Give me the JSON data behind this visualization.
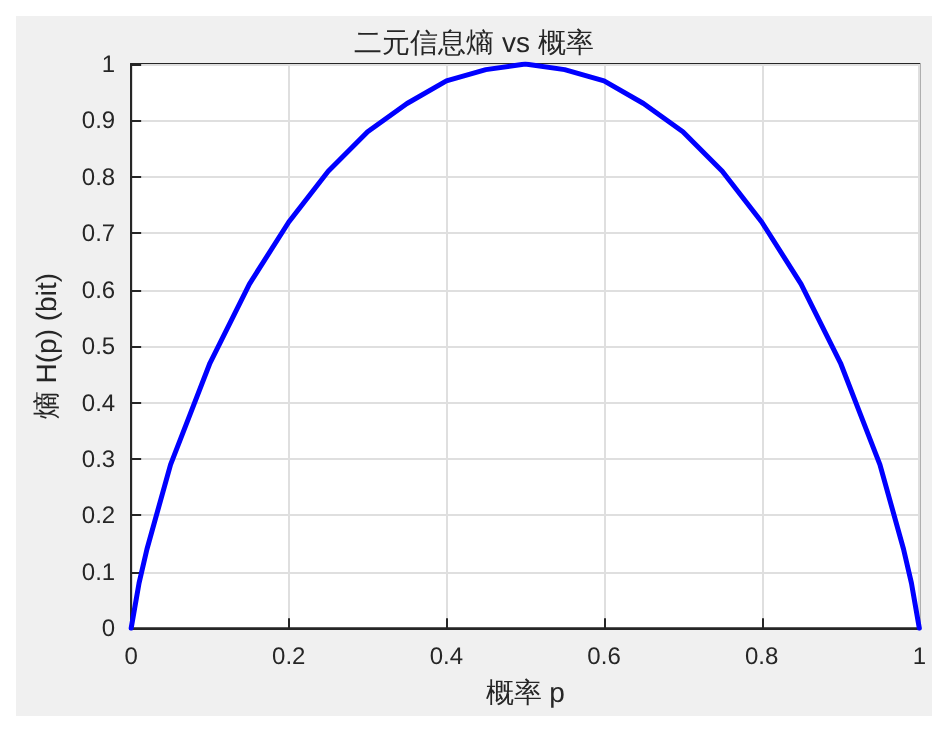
{
  "chart_data": {
    "type": "line",
    "title": "二元信息熵 vs 概率",
    "xlabel": "概率 p",
    "ylabel": "熵 H(p) (bit)",
    "x": [
      0,
      0.01,
      0.02,
      0.05,
      0.075,
      0.1,
      0.15,
      0.2,
      0.25,
      0.3,
      0.35,
      0.4,
      0.45,
      0.5,
      0.55,
      0.6,
      0.65,
      0.7,
      0.75,
      0.8,
      0.85,
      0.9,
      0.925,
      0.95,
      0.98,
      0.99,
      1
    ],
    "series": [
      {
        "color": "#0000ff",
        "values": [
          0,
          0.08,
          0.14,
          0.29,
          0.38,
          0.47,
          0.61,
          0.72,
          0.81,
          0.88,
          0.93,
          0.97,
          0.99,
          1,
          0.99,
          0.97,
          0.93,
          0.88,
          0.81,
          0.72,
          0.61,
          0.47,
          0.38,
          0.29,
          0.14,
          0.08,
          0
        ]
      }
    ],
    "xlim": [
      0,
      1
    ],
    "xticks": [
      0,
      0.2,
      0.4,
      0.6,
      0.8,
      1
    ],
    "ylim": [
      0,
      1
    ],
    "yticks": [
      0,
      0.1,
      0.2,
      0.3,
      0.4,
      0.5,
      0.6,
      0.7,
      0.8,
      0.9,
      1
    ],
    "grid": true,
    "marker": "none",
    "line_style": "solid"
  }
}
